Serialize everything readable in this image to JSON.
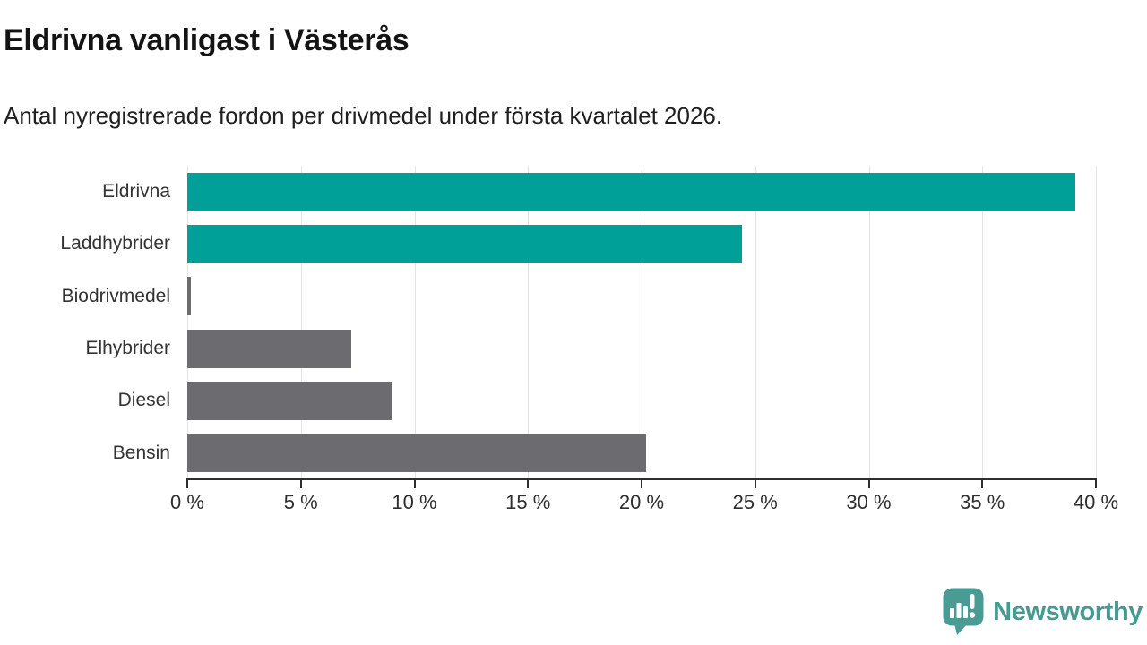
{
  "header": {
    "title": "Eldrivna vanligast i Västerås",
    "subtitle": "Antal nyregistrerade fordon per drivmedel under första kvartalet 2026."
  },
  "chart_data": {
    "type": "bar",
    "orientation": "horizontal",
    "title": "Eldrivna vanligast i Västerås",
    "subtitle": "Antal nyregistrerade fordon per drivmedel under första kvartalet 2026.",
    "categories": [
      "Eldrivna",
      "Laddhybrider",
      "Biodrivmedel",
      "Elhybrider",
      "Diesel",
      "Bensin"
    ],
    "values": [
      39.1,
      24.4,
      0.15,
      7.2,
      9.0,
      20.2
    ],
    "unit": "%",
    "bar_colors": [
      "#00a099",
      "#00a099",
      "#6b6b70",
      "#6b6b70",
      "#6b6b70",
      "#6b6b70"
    ],
    "xlabel": "",
    "ylabel": "",
    "xlim": [
      0,
      40
    ],
    "x_ticks": [
      0,
      5,
      10,
      15,
      20,
      25,
      30,
      35,
      40
    ],
    "x_tick_labels": [
      "0 %",
      "5 %",
      "10 %",
      "15 %",
      "20 %",
      "25 %",
      "30 %",
      "35 %",
      "40 %"
    ],
    "grid": "vertical-only",
    "legend": "none"
  },
  "colors": {
    "highlight_bar": "#00a099",
    "default_bar": "#6b6b70",
    "axis": "#2e2e2e",
    "gridline": "#e3e3e3",
    "brand_teal": "#479a92"
  },
  "footer": {
    "brand": "Newsworthy"
  }
}
